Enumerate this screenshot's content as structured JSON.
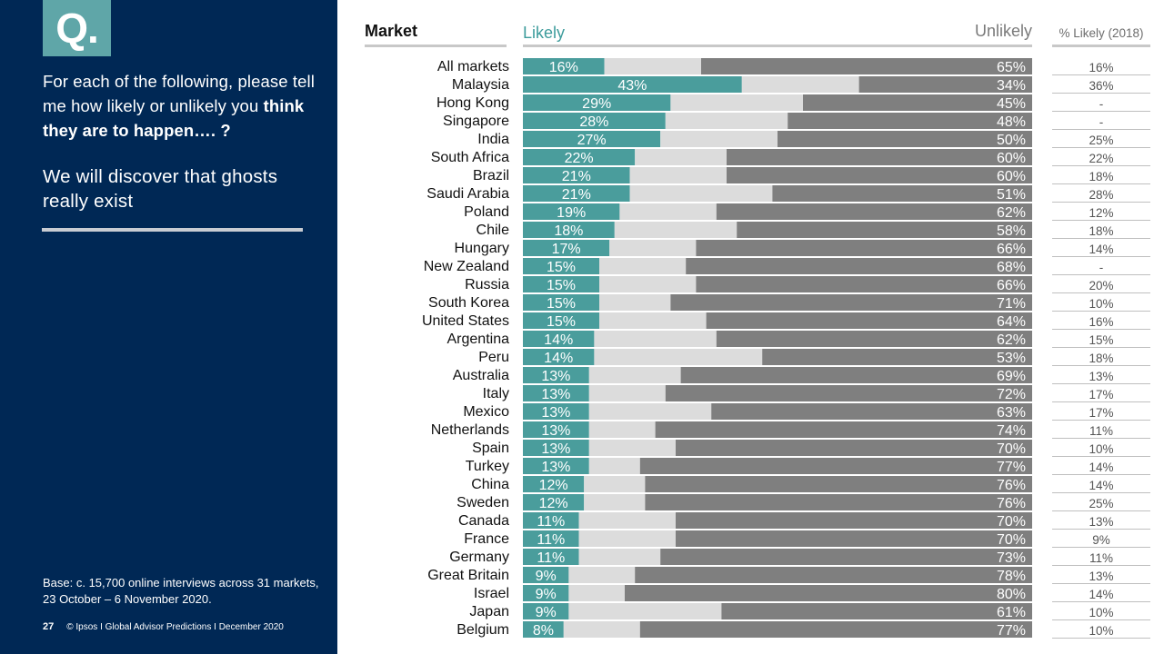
{
  "left_panel": {
    "badge": "Q.",
    "question_plain": "For each of the following, please tell me how likely or unlikely you ",
    "question_bold": "think they are to happen…. ?",
    "subject": "We will discover that ghosts really exist",
    "base_note": "Base: c. 15,700 online interviews across 31 markets,  23 October – 6 November 2020.",
    "page_number": "27",
    "footer_text": "© Ipsos I Global Advisor Predictions I December 2020"
  },
  "headers": {
    "market": "Market",
    "likely": "Likely",
    "unlikely": "Unlikely",
    "likely_2018": "% Likely (2018)"
  },
  "colors": {
    "panel_bg": "#002855",
    "accent_teal": "#4a9d9c",
    "neutral_light": "#dcdcdc",
    "unlikely_gray": "#7f7f7f"
  },
  "chart_data": {
    "type": "bar",
    "stacked": "100%",
    "categories": [
      "All markets",
      "Malaysia",
      "Hong Kong",
      "Singapore",
      "India",
      "South Africa",
      "Brazil",
      "Saudi Arabia",
      "Poland",
      "Chile",
      "Hungary",
      "New Zealand",
      "Russia",
      "South Korea",
      "United States",
      "Argentina",
      "Peru",
      "Australia",
      "Italy",
      "Mexico",
      "Netherlands",
      "Spain",
      "Turkey",
      "China",
      "Sweden",
      "Canada",
      "France",
      "Germany",
      "Great Britain",
      "Israel",
      "Japan",
      "Belgium"
    ],
    "series": [
      {
        "name": "Likely",
        "values": [
          16,
          43,
          29,
          28,
          27,
          22,
          21,
          21,
          19,
          18,
          17,
          15,
          15,
          15,
          15,
          14,
          14,
          13,
          13,
          13,
          13,
          13,
          13,
          12,
          12,
          11,
          11,
          11,
          9,
          9,
          9,
          8
        ]
      },
      {
        "values": [
          19,
          23,
          26,
          24,
          23,
          18,
          19,
          28,
          19,
          24,
          17,
          17,
          19,
          14,
          21,
          24,
          33,
          18,
          15,
          24,
          13,
          17,
          10,
          12,
          12,
          19,
          19,
          16,
          13,
          11,
          30,
          15
        ]
      },
      {
        "name": "Unlikely",
        "values": [
          65,
          34,
          45,
          48,
          50,
          60,
          60,
          51,
          62,
          58,
          66,
          68,
          66,
          71,
          64,
          62,
          53,
          69,
          72,
          63,
          74,
          70,
          77,
          76,
          76,
          70,
          70,
          73,
          78,
          80,
          61,
          77
        ]
      }
    ],
    "likely_2018": [
      "16%",
      "36%",
      "-",
      "-",
      "25%",
      "22%",
      "18%",
      "28%",
      "12%",
      "18%",
      "14%",
      "-",
      "20%",
      "10%",
      "16%",
      "15%",
      "18%",
      "13%",
      "17%",
      "17%",
      "11%",
      "10%",
      "14%",
      "14%",
      "25%",
      "13%",
      "9%",
      "11%",
      "13%",
      "14%",
      "10%",
      "10%"
    ],
    "xlim": [
      0,
      100
    ]
  }
}
